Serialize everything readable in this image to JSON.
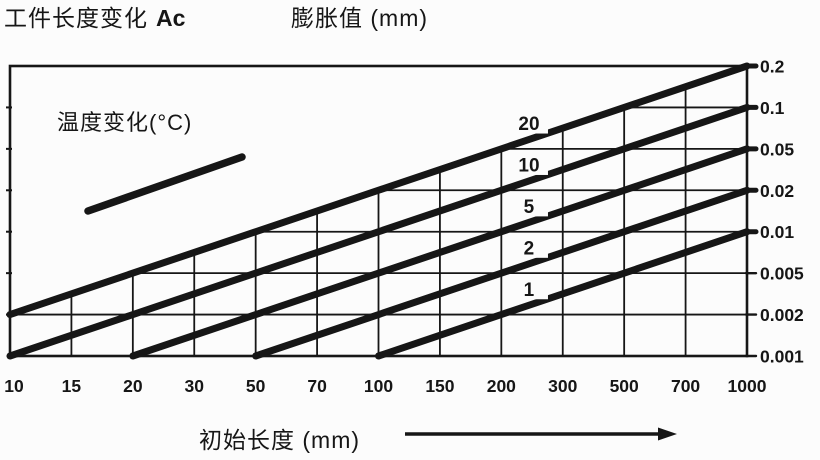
{
  "header": {
    "title_cn": "工件长度变化",
    "title_suffix": "Ac",
    "expansion_label": "膨胀值 (mm)"
  },
  "plot": {
    "temp_label": "温度变化(°C)",
    "x_title": "初始长度 (mm)"
  },
  "colors": {
    "ink": "#161616",
    "background": "#fcfcfc"
  },
  "chart_data": {
    "type": "line",
    "title": "工件长度变化 Ac / 膨胀值 (mm)",
    "grid": true,
    "legend_label": "温度变化(°C)",
    "x_axis": {
      "label": "初始长度 (mm)",
      "scale": "log",
      "ticks": [
        10,
        15,
        20,
        30,
        50,
        70,
        100,
        150,
        200,
        300,
        500,
        700,
        1000
      ],
      "tick_labels": [
        "10",
        "15",
        "20",
        "30",
        "50",
        "70",
        "100",
        "150",
        "200",
        "300",
        "500",
        "700",
        "1000"
      ],
      "range": [
        10,
        1000
      ]
    },
    "y_axis": {
      "label": "膨胀值 (mm)",
      "scale": "log",
      "position": "right",
      "ticks": [
        0.2,
        0.1,
        0.05,
        0.02,
        0.01,
        0.005,
        0.002,
        0.001
      ],
      "tick_labels": [
        "0.2",
        "0.1",
        "0.05",
        "0.02",
        "0.01",
        "0.005",
        "0.002",
        "0.001"
      ],
      "range": [
        0.001,
        0.2
      ]
    },
    "series": [
      {
        "name": "20",
        "temperature_c": 20,
        "points": [
          {
            "x": 10,
            "y": 0.002
          },
          {
            "x": 1000,
            "y": 0.2
          }
        ]
      },
      {
        "name": "10",
        "temperature_c": 10,
        "points": [
          {
            "x": 10,
            "y": 0.001
          },
          {
            "x": 1000,
            "y": 0.1
          }
        ]
      },
      {
        "name": "5",
        "temperature_c": 5,
        "points": [
          {
            "x": 20,
            "y": 0.001
          },
          {
            "x": 1000,
            "y": 0.05
          }
        ]
      },
      {
        "name": "2",
        "temperature_c": 2,
        "points": [
          {
            "x": 50,
            "y": 0.001
          },
          {
            "x": 1000,
            "y": 0.02
          }
        ]
      },
      {
        "name": "1",
        "temperature_c": 1,
        "points": [
          {
            "x": 100,
            "y": 0.001
          },
          {
            "x": 1000,
            "y": 0.01
          }
        ]
      }
    ]
  }
}
